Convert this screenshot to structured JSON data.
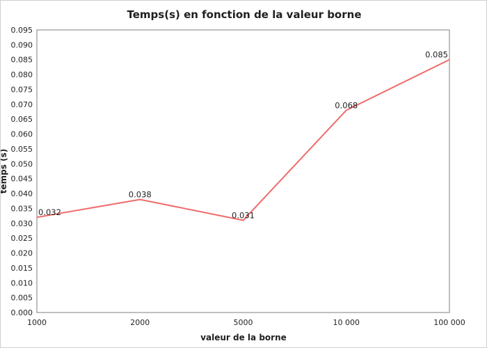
{
  "chart_data": {
    "type": "line",
    "title": "Temps(s) en fonction de la valeur borne",
    "xlabel": "valeur de la borne",
    "ylabel": "temps (s)",
    "categories": [
      "1000",
      "2000",
      "5000",
      "10 000",
      "100 000"
    ],
    "series": [
      {
        "values": [
          0.032,
          0.038,
          0.031,
          0.068,
          0.085
        ],
        "color": "#f06b6b"
      }
    ],
    "data_labels": [
      "0.032",
      "0.038",
      "0.031",
      "0.068",
      "0.085"
    ],
    "ylim": [
      0,
      0.095
    ],
    "y_ticks": [
      "0.000",
      "0.005",
      "0.010",
      "0.015",
      "0.020",
      "0.025",
      "0.030",
      "0.035",
      "0.040",
      "0.045",
      "0.050",
      "0.055",
      "0.060",
      "0.065",
      "0.070",
      "0.075",
      "0.080",
      "0.085",
      "0.090",
      "0.095"
    ],
    "grid": false,
    "legend": "none"
  }
}
